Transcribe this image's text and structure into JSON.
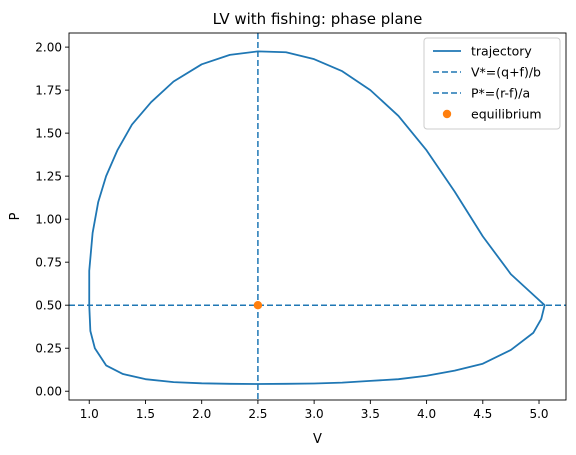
{
  "chart_data": {
    "type": "line",
    "title": "LV with fishing: phase plane",
    "xlabel": "V",
    "ylabel": "P",
    "xlim": [
      0.82,
      5.24
    ],
    "ylim": [
      -0.051,
      2.082
    ],
    "x_ticks": [
      {
        "value": 1.0,
        "label": "1.0"
      },
      {
        "value": 1.5,
        "label": "1.5"
      },
      {
        "value": 2.0,
        "label": "2.0"
      },
      {
        "value": 2.5,
        "label": "2.5"
      },
      {
        "value": 3.0,
        "label": "3.0"
      },
      {
        "value": 3.5,
        "label": "3.5"
      },
      {
        "value": 4.0,
        "label": "4.0"
      },
      {
        "value": 4.5,
        "label": "4.5"
      },
      {
        "value": 5.0,
        "label": "5.0"
      }
    ],
    "y_ticks": [
      {
        "value": 0.0,
        "label": "0.00"
      },
      {
        "value": 0.25,
        "label": "0.25"
      },
      {
        "value": 0.5,
        "label": "0.50"
      },
      {
        "value": 0.75,
        "label": "0.75"
      },
      {
        "value": 1.0,
        "label": "1.00"
      },
      {
        "value": 1.25,
        "label": "1.25"
      },
      {
        "value": 1.5,
        "label": "1.50"
      },
      {
        "value": 1.75,
        "label": "1.75"
      },
      {
        "value": 2.0,
        "label": "2.00"
      }
    ],
    "grid": false,
    "legend_position": "top-right",
    "series": [
      {
        "name": "trajectory",
        "kind": "line",
        "style": "solid",
        "color": "#1f77b4",
        "points": [
          [
            1.0,
            0.5
          ],
          [
            1.0,
            0.7
          ],
          [
            1.03,
            0.92
          ],
          [
            1.08,
            1.1
          ],
          [
            1.15,
            1.25
          ],
          [
            1.25,
            1.4
          ],
          [
            1.38,
            1.55
          ],
          [
            1.55,
            1.68
          ],
          [
            1.75,
            1.8
          ],
          [
            2.0,
            1.9
          ],
          [
            2.25,
            1.955
          ],
          [
            2.5,
            1.975
          ],
          [
            2.75,
            1.97
          ],
          [
            3.0,
            1.93
          ],
          [
            3.25,
            1.86
          ],
          [
            3.5,
            1.75
          ],
          [
            3.75,
            1.6
          ],
          [
            4.0,
            1.4
          ],
          [
            4.25,
            1.16
          ],
          [
            4.5,
            0.9
          ],
          [
            4.75,
            0.68
          ],
          [
            4.95,
            0.56
          ],
          [
            5.05,
            0.5
          ],
          [
            5.02,
            0.42
          ],
          [
            4.95,
            0.34
          ],
          [
            4.75,
            0.24
          ],
          [
            4.5,
            0.16
          ],
          [
            4.25,
            0.12
          ],
          [
            4.0,
            0.09
          ],
          [
            3.75,
            0.07
          ],
          [
            3.5,
            0.06
          ],
          [
            3.25,
            0.05
          ],
          [
            3.0,
            0.045
          ],
          [
            2.75,
            0.043
          ],
          [
            2.5,
            0.042
          ],
          [
            2.25,
            0.043
          ],
          [
            2.0,
            0.046
          ],
          [
            1.75,
            0.053
          ],
          [
            1.5,
            0.07
          ],
          [
            1.3,
            0.1
          ],
          [
            1.15,
            0.15
          ],
          [
            1.05,
            0.25
          ],
          [
            1.01,
            0.35
          ],
          [
            1.0,
            0.5
          ]
        ]
      },
      {
        "name": "V*=(q+f)/b",
        "kind": "vline",
        "style": "dashed",
        "color": "#1f77b4",
        "x": 2.5
      },
      {
        "name": "P*=(r-f)/a",
        "kind": "hline",
        "style": "dashed",
        "color": "#1f77b4",
        "y": 0.5
      },
      {
        "name": "equilibrium",
        "kind": "scatter",
        "color": "#ff7f0e",
        "points": [
          [
            2.5,
            0.5
          ]
        ]
      }
    ]
  }
}
